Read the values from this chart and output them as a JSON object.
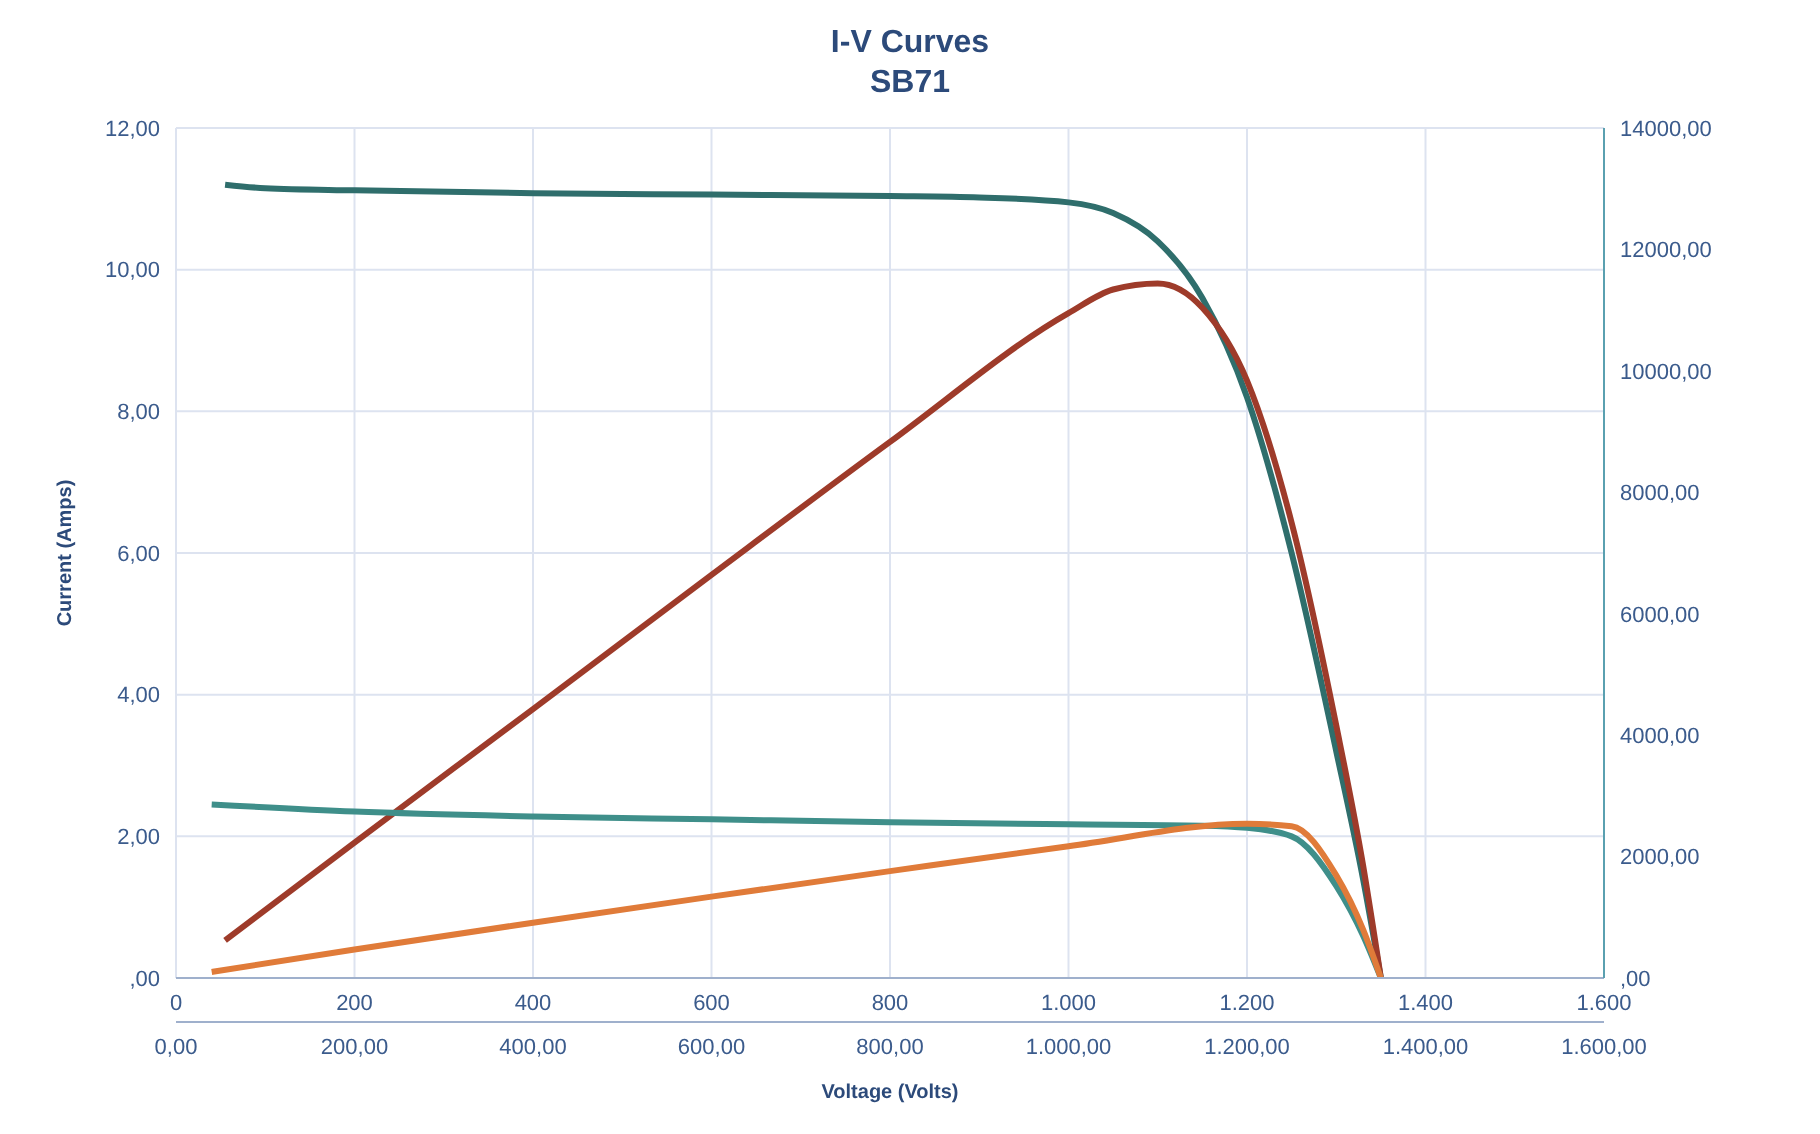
{
  "chart_data": {
    "type": "line",
    "title": "I-V Curves",
    "subtitle": "SB71",
    "xlabel": "Voltage (Volts)",
    "ylabel": "Current (Amps)",
    "xlim": [
      0,
      1600
    ],
    "xticks": [
      0,
      200,
      400,
      600,
      800,
      {
        "value": 1000,
        "label": "1.000"
      },
      {
        "value": 1200,
        "label": "1.200"
      },
      {
        "value": 1400,
        "label": "1.400"
      },
      {
        "value": 1600,
        "label": "1.600"
      }
    ],
    "x2lim": [
      0,
      1600
    ],
    "x2ticks": [
      {
        "value": 0,
        "label": "0,00"
      },
      {
        "value": 200,
        "label": "200,00"
      },
      {
        "value": 400,
        "label": "400,00"
      },
      {
        "value": 600,
        "label": "600,00"
      },
      {
        "value": 800,
        "label": "800,00"
      },
      {
        "value": 1000,
        "label": "1.000,00"
      },
      {
        "value": 1200,
        "label": "1.200,00"
      },
      {
        "value": 1400,
        "label": "1.400,00"
      },
      {
        "value": 1600,
        "label": "1.600,00"
      }
    ],
    "ylim": [
      0,
      12
    ],
    "yticks": [
      {
        "value": 0,
        "label": ",00"
      },
      {
        "value": 2,
        "label": "2,00"
      },
      {
        "value": 4,
        "label": "4,00"
      },
      {
        "value": 6,
        "label": "6,00"
      },
      {
        "value": 8,
        "label": "8,00"
      },
      {
        "value": 10,
        "label": "10,00"
      },
      {
        "value": 12,
        "label": "12,00"
      }
    ],
    "y2lim": [
      0,
      14000
    ],
    "y2ticks": [
      {
        "value": 0,
        "label": ",00"
      },
      {
        "value": 2000,
        "label": "2000,00"
      },
      {
        "value": 4000,
        "label": "4000,00"
      },
      {
        "value": 6000,
        "label": "6000,00"
      },
      {
        "value": 8000,
        "label": "8000,00"
      },
      {
        "value": 10000,
        "label": "10000,00"
      },
      {
        "value": 12000,
        "label": "12000,00"
      },
      {
        "value": 14000,
        "label": "14000,00"
      }
    ],
    "grid": true,
    "marker": "none",
    "line_style": "solid",
    "series": [
      {
        "color": "#2f6e6c",
        "x": [
          55,
          100,
          200,
          400,
          600,
          800,
          900,
          1000,
          1050,
          1100,
          1150,
          1200,
          1250,
          1300,
          1330,
          1350
        ],
        "values": [
          11.2,
          11.15,
          11.12,
          11.08,
          11.06,
          11.04,
          11.02,
          10.95,
          10.8,
          10.4,
          9.6,
          8.2,
          6.0,
          3.2,
          1.4,
          0
        ]
      },
      {
        "color": "#9e3b2a",
        "axis": "y2",
        "x": [
          55,
          200,
          400,
          600,
          800,
          1000,
          1050,
          1100,
          1150,
          1200,
          1250,
          1300,
          1330,
          1350
        ],
        "values": [
          620,
          2230,
          4430,
          6640,
          8830,
          10950,
          11340,
          11440,
          11040,
          9840,
          7500,
          4160,
          1860,
          0
        ]
      },
      {
        "color": "#3f8f8a",
        "x": [
          40,
          200,
          400,
          600,
          800,
          1000,
          1150,
          1200,
          1250,
          1300,
          1330,
          1350
        ],
        "values": [
          2.45,
          2.35,
          2.28,
          2.24,
          2.2,
          2.17,
          2.15,
          2.12,
          2.0,
          1.3,
          0.6,
          0
        ]
      },
      {
        "color": "#e07b39",
        "axis": "y2",
        "x": [
          40,
          200,
          400,
          600,
          800,
          1000,
          1200,
          1250,
          1300,
          1330,
          1350
        ],
        "values": [
          100,
          470,
          910,
          1340,
          1760,
          2170,
          2540,
          2500,
          1690,
          800,
          0
        ]
      }
    ]
  }
}
